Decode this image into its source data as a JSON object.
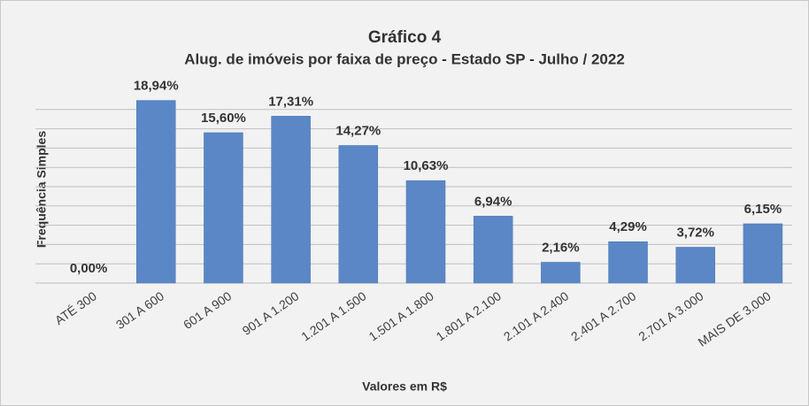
{
  "chart_data": {
    "type": "bar",
    "title": "Gráfico 4",
    "subtitle": "Alug. de imóveis por faixa de preço - Estado SP - Julho / 2022",
    "x_label": "Valores em R$",
    "y_label": "Frequência Simples",
    "categories": [
      "ATÉ 300",
      "301 A 600",
      "601 A 900",
      "901 A 1.200",
      "1.201 A 1.500",
      "1.501 A 1.800",
      "1.801 A 2.100",
      "2.101 A 2.400",
      "2.401 A 2.700",
      "2.701 A 3.000",
      "MAIS DE 3.000"
    ],
    "values": [
      0,
      18.94,
      15.6,
      17.31,
      14.27,
      10.63,
      6.94,
      2.16,
      4.29,
      3.72,
      6.15
    ],
    "value_labels": [
      "0,00%",
      "18,94%",
      "15,60%",
      "17,31%",
      "14,27%",
      "10,63%",
      "6,94%",
      "2,16%",
      "4,29%",
      "3,72%",
      "6,15%"
    ],
    "color": "#5b87c6",
    "ylim": [
      0,
      20
    ],
    "yticks": [
      0,
      2,
      4,
      6,
      8,
      10,
      12,
      14,
      16,
      18
    ],
    "show_ytick_labels": false,
    "grid": true
  }
}
